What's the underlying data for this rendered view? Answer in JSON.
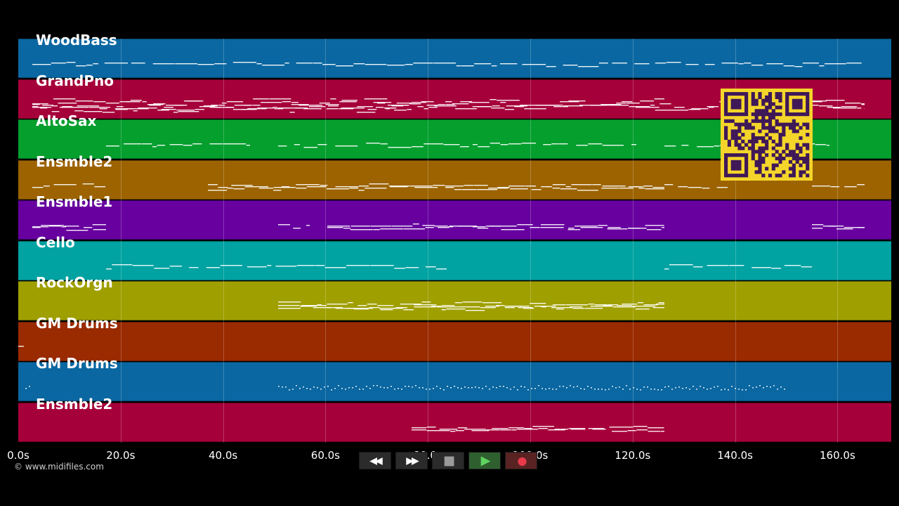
{
  "tracks": [
    {
      "name": "WoodBass",
      "color": "#0a67a1"
    },
    {
      "name": "GrandPno",
      "color": "#a6003a"
    },
    {
      "name": "AltoSax",
      "color": "#059f2e"
    },
    {
      "name": "Ensmble2",
      "color": "#9c6300"
    },
    {
      "name": "Ensmble1",
      "color": "#67009f"
    },
    {
      "name": "Cello",
      "color": "#00a2a2"
    },
    {
      "name": "RockOrgn",
      "color": "#9f9f00"
    },
    {
      "name": "GM Drums",
      "color": "#9a2a00"
    },
    {
      "name": "GM Drums",
      "color": "#0a67a1"
    },
    {
      "name": "Ensmble2",
      "color": "#a6003a"
    }
  ],
  "time_axis": {
    "ticks": [
      "0.0s",
      "20.0s",
      "40.0s",
      "60.0s",
      "80.0s",
      "100.0s",
      "120.0s",
      "140.0s",
      "160.0s"
    ],
    "max_seconds": 170
  },
  "copyright": "© www.midifiles.com",
  "transport": {
    "rewind": "◀◀",
    "fast_forward": "▶▶",
    "stop": "■",
    "play": "▶",
    "record": "●"
  },
  "qr_colors": {
    "fg": "#3f1858",
    "bg": "#f4d62a"
  }
}
